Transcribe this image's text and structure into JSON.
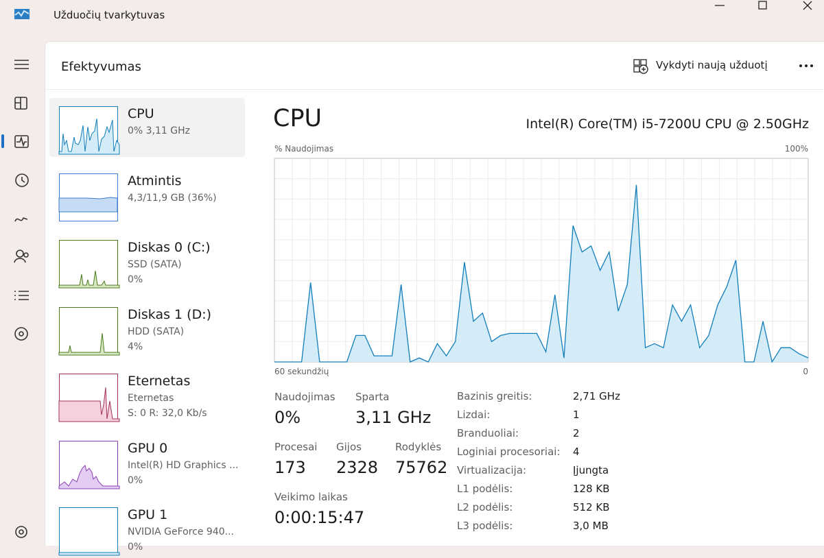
{
  "window": {
    "title": "Užduočių tvarkytuvas"
  },
  "header": {
    "title": "Efektyvumas",
    "action": "Vykdyti naują užduotį"
  },
  "sidebar": [
    {
      "name": "CPU",
      "lines": [
        "0% 3,11 GHz"
      ]
    },
    {
      "name": "Atmintis",
      "lines": [
        "4,3/11,9 GB (36%)"
      ]
    },
    {
      "name": "Diskas 0 (C:)",
      "lines": [
        "SSD (SATA)",
        "0%"
      ]
    },
    {
      "name": "Diskas 1 (D:)",
      "lines": [
        "HDD (SATA)",
        "4%"
      ]
    },
    {
      "name": "Eternetas",
      "lines": [
        "Eternetas",
        "S: 0 R: 32,0 Kb/s"
      ]
    },
    {
      "name": "GPU 0",
      "lines": [
        "Intel(R) HD Graphics ...",
        "0%"
      ]
    },
    {
      "name": "GPU 1",
      "lines": [
        "NVIDIA GeForce 940...",
        "0%"
      ]
    }
  ],
  "detail": {
    "title": "CPU",
    "model": "Intel(R) Core(TM) i5-7200U CPU @ 2.50GHz",
    "stats": [
      {
        "label": "Naudojimas",
        "value": "0%"
      },
      {
        "label": "Sparta",
        "value": "3,11 GHz"
      },
      {
        "label": "Procesai",
        "value": "173"
      },
      {
        "label": "Gijos",
        "value": "2328"
      },
      {
        "label": "Rodyklės",
        "value": "75762"
      },
      {
        "label": "Veikimo laikas",
        "value": "0:00:15:47"
      }
    ],
    "specs": [
      {
        "label": "Bazinis greitis:",
        "value": "2,71 GHz"
      },
      {
        "label": "Lizdai:",
        "value": "1"
      },
      {
        "label": "Branduoliai:",
        "value": "2"
      },
      {
        "label": "Loginiai procesoriai:",
        "value": "4"
      },
      {
        "label": "Virtualizacija:",
        "value": "Įjungta"
      },
      {
        "label": "L1 podėlis:",
        "value": "128 KB"
      },
      {
        "label": "L2 podėlis:",
        "value": "512 KB"
      },
      {
        "label": "L3 podėlis:",
        "value": "3,0 MB"
      }
    ]
  },
  "chart_data": {
    "type": "area",
    "y_label": "% Naudojimas",
    "ylim": [
      0,
      100
    ],
    "yticks": [
      {
        "value": 100,
        "label": "100%"
      }
    ],
    "xlim": [
      60,
      0
    ],
    "xticks": [
      {
        "value": 60,
        "label": "60 sekundžių"
      },
      0
    ],
    "color": "#117dbb",
    "fill": "#d3ecf8",
    "values": [
      0,
      0,
      0,
      0,
      39,
      0,
      0,
      0,
      0,
      13,
      13,
      3,
      3,
      3,
      38,
      0,
      2,
      0,
      9,
      3,
      10,
      49,
      20,
      24,
      10,
      13,
      14,
      14,
      14,
      14,
      5,
      33,
      2,
      67,
      54,
      57,
      45,
      54,
      25,
      38,
      87,
      7,
      9,
      7,
      28,
      20,
      28,
      7,
      13,
      28,
      37,
      50,
      0,
      0,
      20,
      0,
      7,
      7,
      4,
      2
    ]
  }
}
